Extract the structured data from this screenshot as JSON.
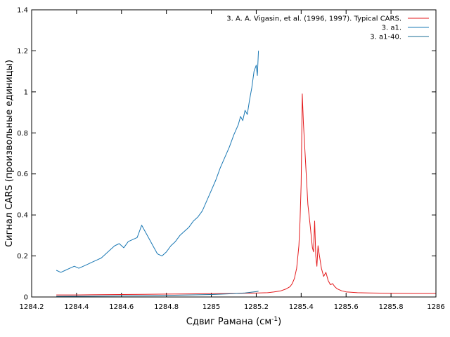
{
  "chart_data": {
    "type": "line",
    "xlabel_main": "Сдвиг Рамана (см",
    "xlabel_sup": "-1",
    "xlabel_end": ")",
    "ylabel": "Сигнал CARS (произвольные единицы)",
    "xlim": [
      1284.2,
      1286
    ],
    "ylim": [
      0,
      1.4
    ],
    "xticks": [
      1284.2,
      1284.4,
      1284.6,
      1284.8,
      1285,
      1285.2,
      1285.4,
      1285.6,
      1285.8,
      1286
    ],
    "xtick_labels": [
      "1284.2",
      "1284.4",
      "1284.6",
      "1284.8",
      "1285",
      "1285.2",
      "1285.4",
      "1285.6",
      "1285.8",
      "1286"
    ],
    "yticks": [
      0,
      0.2,
      0.4,
      0.6,
      0.8,
      1,
      1.2,
      1.4
    ],
    "ytick_labels": [
      "0",
      "0.2",
      "0.4",
      "0.6",
      "0.8",
      "1",
      "1.2",
      "1.4"
    ],
    "legend_position": "top-right",
    "series": [
      {
        "name": "3. A. A. Vigasin, et al. (1996, 1997). Typical CARS.",
        "color": "#e41a1c",
        "x": [
          1284.31,
          1284.4,
          1284.5,
          1284.6,
          1284.7,
          1284.8,
          1284.9,
          1285.0,
          1285.1,
          1285.2,
          1285.25,
          1285.28,
          1285.31,
          1285.33,
          1285.35,
          1285.36,
          1285.37,
          1285.38,
          1285.39,
          1285.395,
          1285.4,
          1285.405,
          1285.41,
          1285.42,
          1285.43,
          1285.44,
          1285.45,
          1285.455,
          1285.46,
          1285.465,
          1285.47,
          1285.475,
          1285.48,
          1285.49,
          1285.5,
          1285.51,
          1285.52,
          1285.53,
          1285.54,
          1285.55,
          1285.56,
          1285.58,
          1285.6,
          1285.65,
          1285.7,
          1285.8,
          1285.9,
          1286.0
        ],
        "y": [
          0.01,
          0.01,
          0.011,
          0.012,
          0.013,
          0.014,
          0.015,
          0.016,
          0.017,
          0.019,
          0.021,
          0.025,
          0.03,
          0.038,
          0.05,
          0.065,
          0.09,
          0.14,
          0.25,
          0.37,
          0.55,
          0.99,
          0.85,
          0.65,
          0.45,
          0.35,
          0.24,
          0.22,
          0.37,
          0.2,
          0.15,
          0.25,
          0.21,
          0.14,
          0.1,
          0.12,
          0.08,
          0.06,
          0.065,
          0.05,
          0.04,
          0.03,
          0.025,
          0.021,
          0.02,
          0.018,
          0.017,
          0.017
        ]
      },
      {
        "name": "3. a1.",
        "color": "#1a78b4",
        "x": [
          1284.31,
          1284.33,
          1284.35,
          1284.37,
          1284.39,
          1284.41,
          1284.43,
          1284.45,
          1284.47,
          1284.49,
          1284.51,
          1284.53,
          1284.55,
          1284.57,
          1284.59,
          1284.61,
          1284.63,
          1284.65,
          1284.67,
          1284.69,
          1284.7,
          1284.72,
          1284.74,
          1284.76,
          1284.78,
          1284.8,
          1284.82,
          1284.84,
          1284.86,
          1284.88,
          1284.9,
          1284.92,
          1284.94,
          1284.96,
          1284.98,
          1285.0,
          1285.02,
          1285.04,
          1285.06,
          1285.08,
          1285.1,
          1285.12,
          1285.13,
          1285.14,
          1285.15,
          1285.16,
          1285.17,
          1285.18,
          1285.19,
          1285.2,
          1285.205,
          1285.21
        ],
        "y": [
          0.13,
          0.12,
          0.13,
          0.14,
          0.15,
          0.14,
          0.15,
          0.16,
          0.17,
          0.18,
          0.19,
          0.21,
          0.23,
          0.25,
          0.26,
          0.24,
          0.27,
          0.28,
          0.29,
          0.35,
          0.33,
          0.29,
          0.25,
          0.21,
          0.2,
          0.22,
          0.25,
          0.27,
          0.3,
          0.32,
          0.34,
          0.37,
          0.39,
          0.42,
          0.47,
          0.52,
          0.57,
          0.63,
          0.68,
          0.73,
          0.79,
          0.84,
          0.88,
          0.86,
          0.91,
          0.89,
          0.96,
          1.02,
          1.1,
          1.13,
          1.08,
          1.2
        ]
      },
      {
        "name": "3. a1-40.",
        "color": "#1a6e96",
        "x": [
          1284.31,
          1284.5,
          1284.7,
          1284.9,
          1285.0,
          1285.1,
          1285.15,
          1285.2,
          1285.21
        ],
        "y": [
          0.003,
          0.004,
          0.006,
          0.01,
          0.012,
          0.016,
          0.02,
          0.026,
          0.028
        ]
      }
    ]
  }
}
